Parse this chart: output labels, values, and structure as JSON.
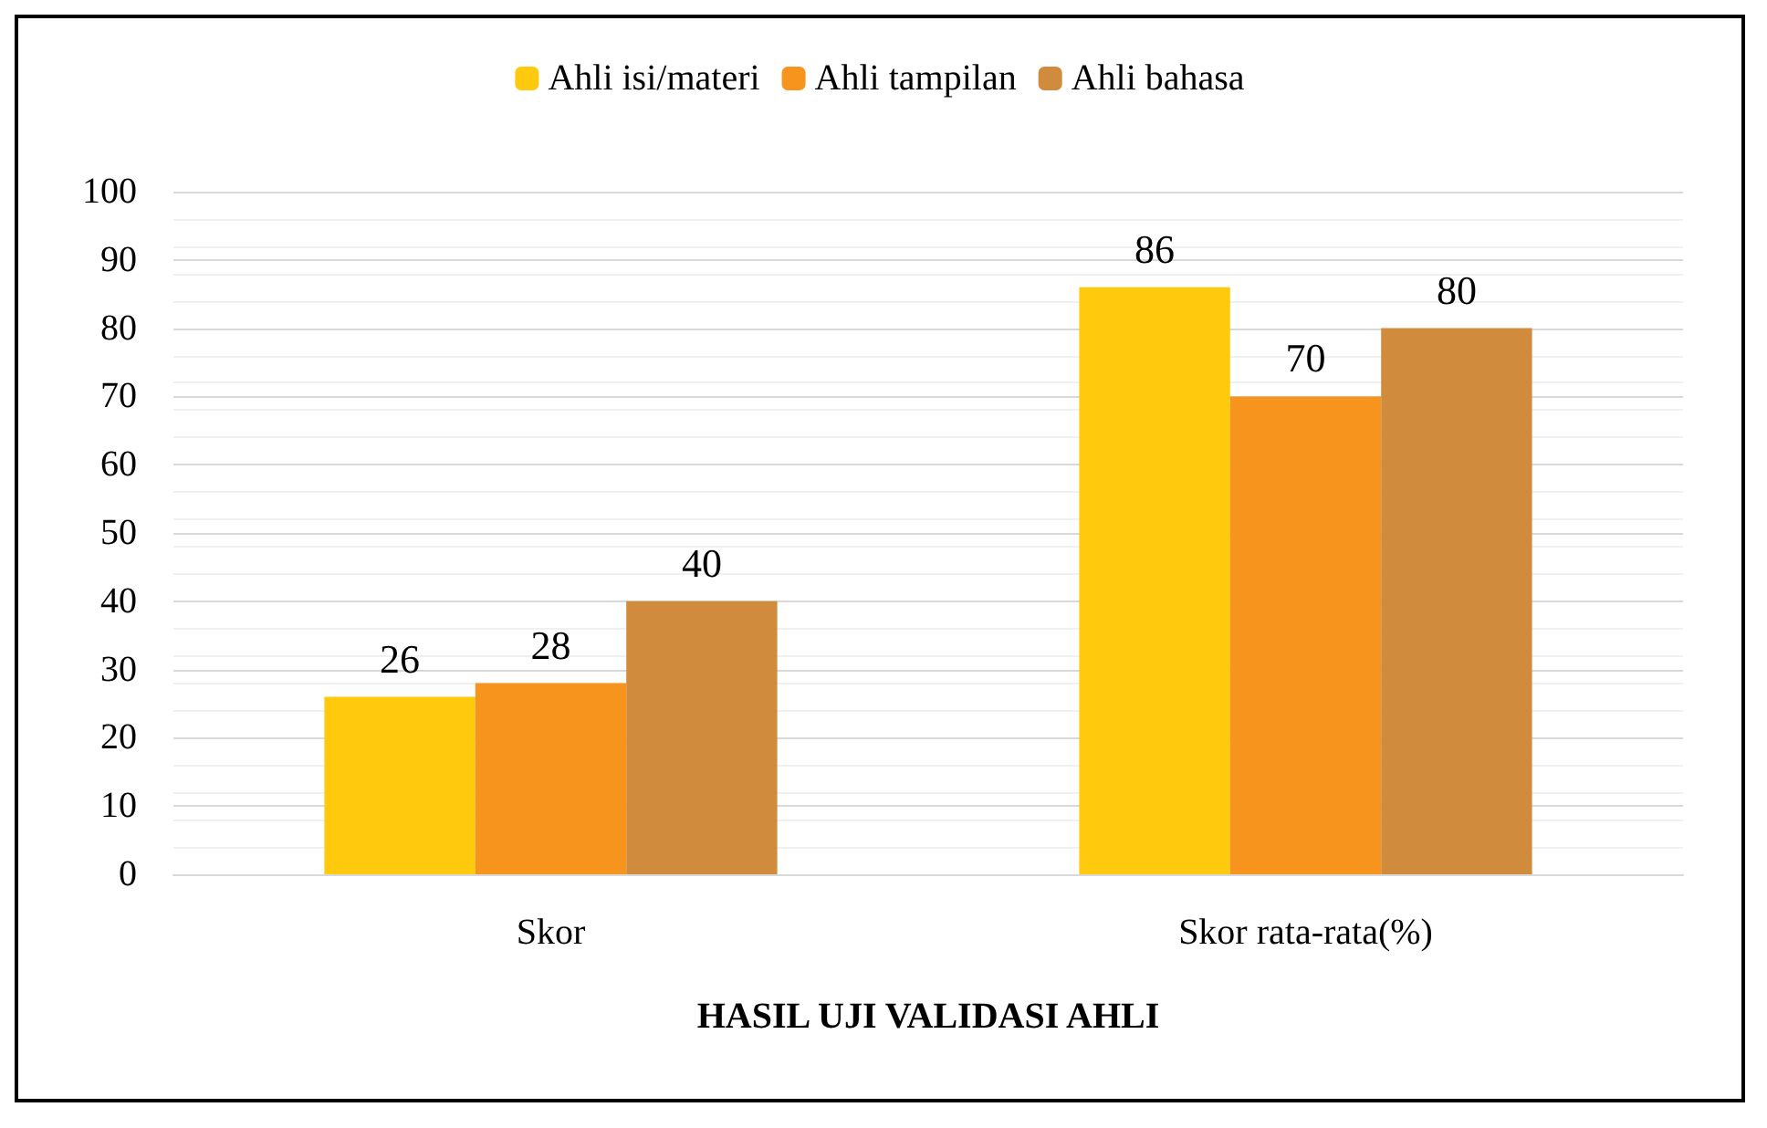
{
  "chart_data": {
    "type": "bar",
    "xlabel": "HASIL UJI VALIDASI AHLI",
    "categories": [
      "Skor",
      "Skor rata-rata(%)"
    ],
    "series": [
      {
        "name": "Ahli isi/materi",
        "color": "#ffc90e",
        "values": [
          26,
          86
        ]
      },
      {
        "name": "Ahli tampilan",
        "color": "#f7941d",
        "values": [
          28,
          70
        ]
      },
      {
        "name": "Ahli bahasa",
        "color": "#d08c3c",
        "values": [
          40,
          80
        ]
      }
    ],
    "ylim": [
      0,
      100
    ],
    "yticks": [
      0,
      10,
      20,
      30,
      40,
      50,
      60,
      70,
      80,
      90,
      100
    ],
    "grid": "y",
    "legend": "top",
    "data_labels": true
  }
}
